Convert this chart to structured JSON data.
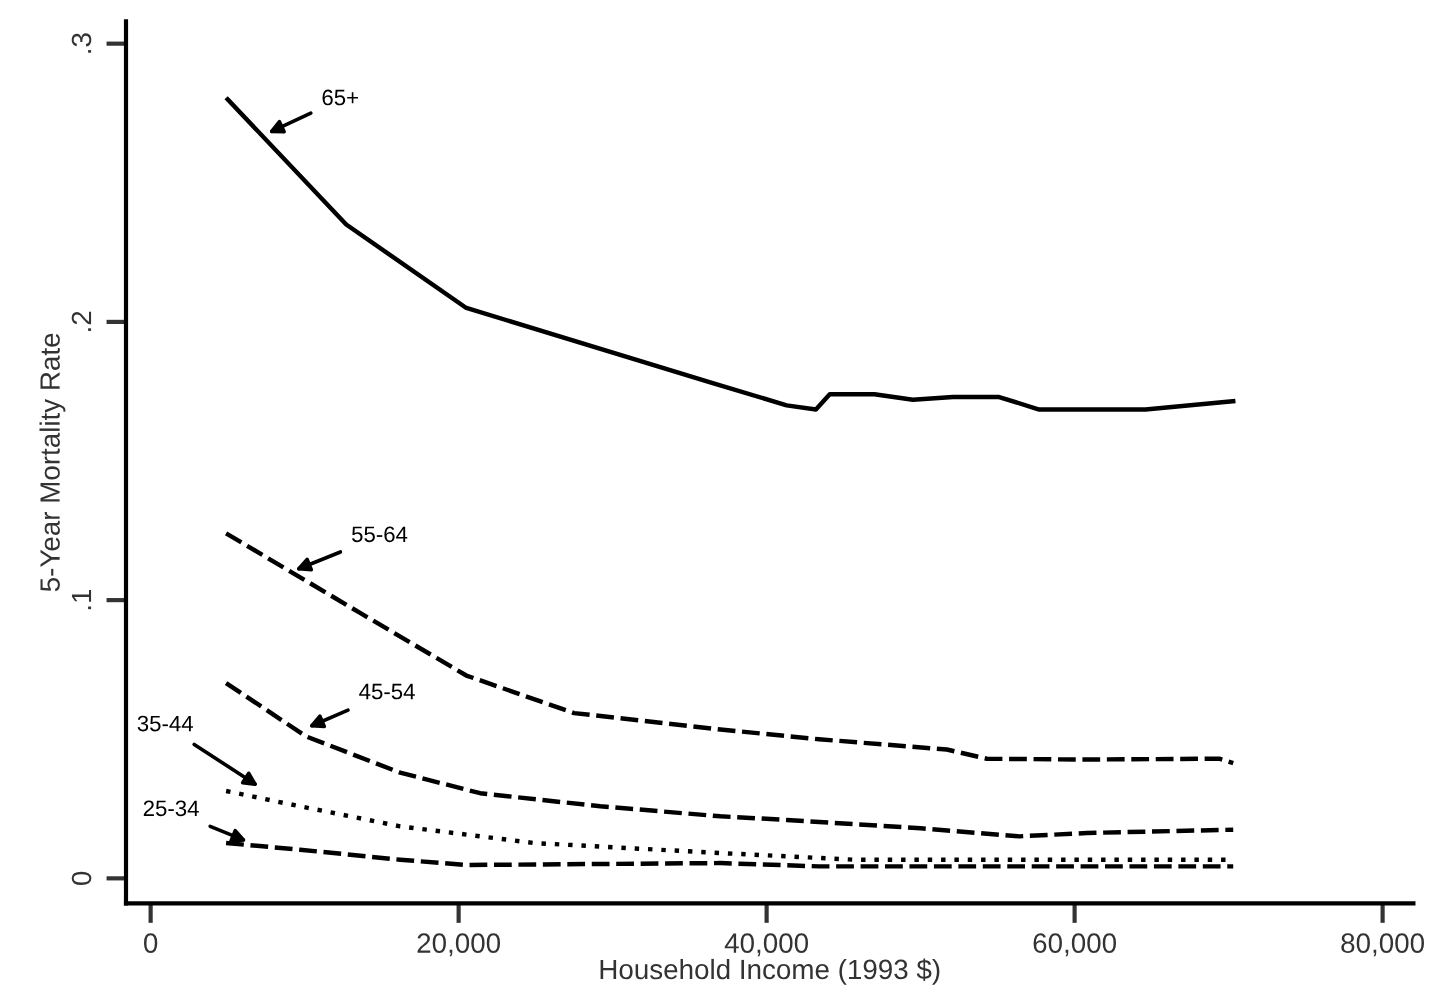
{
  "chart_data": {
    "type": "line",
    "xlabel": "Household Income (1993 $)",
    "ylabel": "5-Year Mortality Rate",
    "xlim": [
      -1600,
      82000
    ],
    "ylim": [
      -0.009,
      0.308
    ],
    "xticks": [
      {
        "value": 0,
        "label": "0"
      },
      {
        "value": 20000,
        "label": "20,000"
      },
      {
        "value": 40000,
        "label": "40,000"
      },
      {
        "value": 60000,
        "label": "60,000"
      },
      {
        "value": 80000,
        "label": "80,000"
      }
    ],
    "yticks": [
      {
        "value": 0,
        "label": "0"
      },
      {
        "value": 0.1,
        "label": ".1"
      },
      {
        "value": 0.2,
        "label": ".2"
      },
      {
        "value": 0.3,
        "label": ".3"
      }
    ],
    "grid": false,
    "legend": false,
    "marker": "none",
    "series": [
      {
        "color": "#000000",
        "line_style": "solid",
        "x": [
          5000,
          12700,
          20500,
          36500,
          41300,
          43200,
          44100,
          47000,
          49500,
          52100,
          55100,
          57700,
          64600,
          69400,
          70300
        ],
        "values": [
          0.28,
          0.235,
          0.205,
          0.178,
          0.17,
          0.1685,
          0.174,
          0.174,
          0.172,
          0.173,
          0.173,
          0.1685,
          0.1685,
          0.171,
          0.1715
        ]
      },
      {
        "color": "#000000",
        "line_style": "dashed",
        "x": [
          4900,
          13600,
          20500,
          27500,
          37000,
          43400,
          51700,
          54300,
          60300,
          69400,
          70300
        ],
        "values": [
          0.124,
          0.0954,
          0.0729,
          0.0594,
          0.0535,
          0.05,
          0.0463,
          0.043,
          0.0427,
          0.043,
          0.0414
        ]
      },
      {
        "color": "#000000",
        "line_style": "dashed",
        "x": [
          4900,
          10100,
          16200,
          21400,
          29200,
          37000,
          41300,
          50000,
          56400,
          60800,
          70300
        ],
        "values": [
          0.0702,
          0.051,
          0.038,
          0.0306,
          0.0259,
          0.0223,
          0.021,
          0.018,
          0.0151,
          0.0163,
          0.0175
        ]
      },
      {
        "color": "#000000",
        "line_style": "dotted",
        "x": [
          4900,
          9700,
          16200,
          24900,
          37000,
          45700,
          70300
        ],
        "values": [
          0.0314,
          0.0259,
          0.0187,
          0.0127,
          0.0091,
          0.0067,
          0.0067
        ]
      },
      {
        "color": "#000000",
        "line_style": "dashed",
        "x": [
          4900,
          9700,
          16200,
          20500,
          37000,
          43400,
          70300
        ],
        "values": [
          0.0127,
          0.0103,
          0.0067,
          0.0048,
          0.0055,
          0.0043,
          0.0043
        ]
      }
    ],
    "annotations": [
      {
        "text": "65+",
        "x": 7300,
        "y": 0.267
      },
      {
        "text": "55-64",
        "x": 9050,
        "y": 0.11
      },
      {
        "text": "45-54",
        "x": 9900,
        "y": 0.0535
      },
      {
        "text": "35-44",
        "x": 7300,
        "y": 0.032
      },
      {
        "text": "25-34",
        "x": 6600,
        "y": 0.0125
      }
    ]
  }
}
